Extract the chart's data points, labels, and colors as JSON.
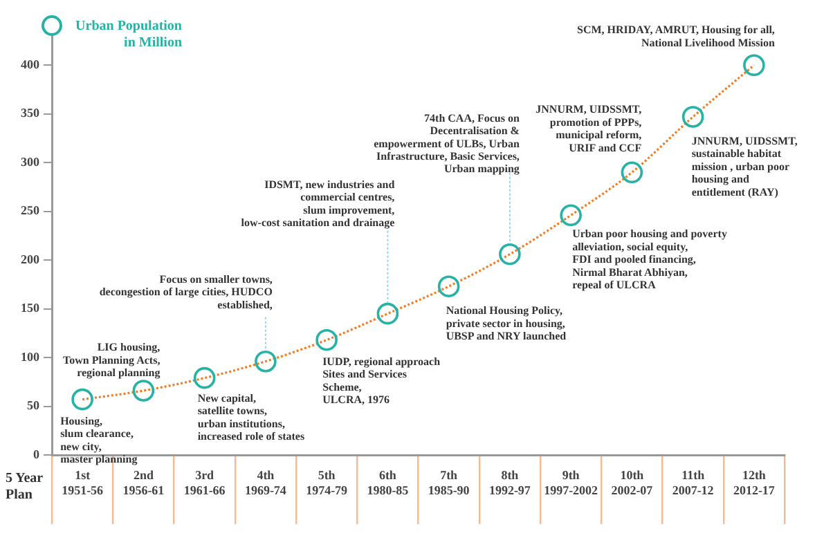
{
  "chart_data": {
    "type": "line",
    "ylabel": "Urban Population\nin Million",
    "xlabel": "5 Year\nPlan",
    "categories": [
      "1st\n1951-56",
      "2nd\n1956-61",
      "3rd\n1961-66",
      "4th\n1969-74",
      "5th\n1974-79",
      "6th\n1980-85",
      "7th\n1985-90",
      "8th\n1992-97",
      "9th\n1997-2002",
      "10th\n2002-07",
      "11th\n2007-12",
      "12th\n2012-17"
    ],
    "series": [
      {
        "color": "#f47b20",
        "colors": [
          "#26b3a6",
          "#26b3a6",
          "#26b3a6",
          "#26b3a6",
          "#26b3a6",
          "#26b3a6",
          "#26b3a6",
          "#26b3a6",
          "#26b3a6",
          "#26b3a6",
          "#26b3a6",
          "#26b3a6"
        ],
        "values": [
          57,
          66,
          79,
          96,
          118,
          145,
          173,
          206,
          246,
          290,
          347,
          400
        ]
      }
    ],
    "ylim": [
      0,
      430
    ],
    "yticks": [
      0,
      50,
      100,
      150,
      200,
      250,
      300,
      350,
      400
    ],
    "marker": "circle",
    "line_style": "dotted",
    "legend": false,
    "annotations": [
      {
        "text": "Housing,\nslum clearance,\nnew city,\nmaster planning",
        "x": "1st\n1951-56",
        "y": 57
      },
      {
        "text": "LIG housing,\nTown Planning Acts,\nregional planning",
        "x": "2nd\n1956-61",
        "y": 66
      },
      {
        "text": "New capital,\nsatellite towns,\nurban institutions,\nincreased role of states",
        "x": "3rd\n1961-66",
        "y": 79
      },
      {
        "text": "Focus on smaller towns,\ndecongestion of large cities, HUDCO\nestablished,",
        "x": "4th\n1969-74",
        "y": 96
      },
      {
        "text": "IUDP, regional approach\nSites and Services\nScheme,\nULCRA, 1976",
        "x": "5th\n1974-79",
        "y": 118
      },
      {
        "text": "IDSMT, new industries and\ncommercial centres,\nslum improvement,\nlow-cost sanitation and drainage",
        "x": "6th\n1980-85",
        "y": 145
      },
      {
        "text": "National Housing Policy,\nprivate sector in housing,\nUBSP and NRY launched",
        "x": "7th\n1985-90",
        "y": 173
      },
      {
        "text": "74th CAA, Focus on\nDecentralisation &\nempowerment of ULBs, Urban\nInfrastructure, Basic Services,\nUrban mapping",
        "x": "8th\n1992-97",
        "y": 206
      },
      {
        "text": "Urban poor housing and poverty\nalleviation, social equity,\nFDI and pooled financing,\nNirmal Bharat Abhiyan,\nrepeal of ULCRA",
        "x": "9th\n1997-2002",
        "y": 246
      },
      {
        "text": "JNNURM, UIDSSMT,\npromotion of PPPs,\nmunicipal reform,\nURIF and CCF",
        "x": "10th\n2002-07",
        "y": 290
      },
      {
        "text": "JNNURM, UIDSSMT,\nsustainable habitat\nmission , urban poor\nhousing and\nentitlement (RAY)",
        "x": "11th\n2007-12",
        "y": 347
      },
      {
        "text": "SCM, HRIDAY, AMRUT, Housing for all,\nNational Livelihood Mission",
        "x": "12th\n2012-17",
        "y": 400
      }
    ]
  }
}
